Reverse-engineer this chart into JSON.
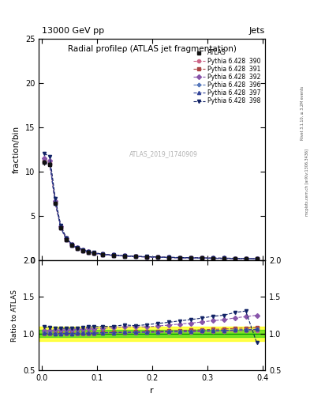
{
  "title": "Radial profileρ (ATLAS jet fragmentation)",
  "top_left_label": "13000 GeV pp",
  "top_right_label": "Jets",
  "ylabel_main": "fraction/bin",
  "ylabel_ratio": "Ratio to ATLAS",
  "xlabel": "r",
  "watermark": "ATLAS_2019_I1740909",
  "rivet_label": "Rivet 3.1.10, ≥ 3.2M events",
  "mcplots_label": "mcplots.cern.ch [arXiv:1306.3436]",
  "ylim_main": [
    0,
    25
  ],
  "ylim_ratio": [
    0.5,
    2.0
  ],
  "r_bins": [
    0.005,
    0.015,
    0.025,
    0.035,
    0.045,
    0.055,
    0.065,
    0.075,
    0.085,
    0.095,
    0.11,
    0.13,
    0.15,
    0.17,
    0.19,
    0.21,
    0.23,
    0.25,
    0.27,
    0.29,
    0.31,
    0.33,
    0.35,
    0.37,
    0.39
  ],
  "atlas_data": [
    11.0,
    10.8,
    6.4,
    3.6,
    2.3,
    1.65,
    1.3,
    1.05,
    0.87,
    0.75,
    0.6,
    0.5,
    0.42,
    0.37,
    0.33,
    0.29,
    0.26,
    0.23,
    0.21,
    0.19,
    0.17,
    0.16,
    0.14,
    0.13,
    0.12
  ],
  "atlas_err_lo": [
    0.3,
    0.3,
    0.15,
    0.08,
    0.05,
    0.04,
    0.03,
    0.025,
    0.02,
    0.018,
    0.015,
    0.012,
    0.01,
    0.009,
    0.008,
    0.007,
    0.006,
    0.005,
    0.005,
    0.004,
    0.004,
    0.004,
    0.003,
    0.003,
    0.003
  ],
  "atlas_err_hi": [
    0.3,
    0.3,
    0.15,
    0.08,
    0.05,
    0.04,
    0.03,
    0.025,
    0.02,
    0.018,
    0.015,
    0.012,
    0.01,
    0.009,
    0.008,
    0.007,
    0.006,
    0.005,
    0.005,
    0.004,
    0.004,
    0.004,
    0.003,
    0.003,
    0.003
  ],
  "pythia_390": [
    11.0,
    10.8,
    6.4,
    3.6,
    2.3,
    1.65,
    1.3,
    1.05,
    0.87,
    0.75,
    0.605,
    0.505,
    0.425,
    0.375,
    0.335,
    0.295,
    0.265,
    0.235,
    0.215,
    0.195,
    0.175,
    0.165,
    0.145,
    0.135,
    0.125
  ],
  "pythia_391": [
    11.1,
    10.9,
    6.45,
    3.62,
    2.32,
    1.66,
    1.31,
    1.06,
    0.88,
    0.76,
    0.61,
    0.51,
    0.43,
    0.38,
    0.34,
    0.3,
    0.27,
    0.24,
    0.22,
    0.2,
    0.18,
    0.17,
    0.15,
    0.14,
    0.13
  ],
  "pythia_392": [
    11.5,
    11.2,
    6.7,
    3.78,
    2.42,
    1.74,
    1.38,
    1.12,
    0.93,
    0.8,
    0.645,
    0.54,
    0.46,
    0.405,
    0.36,
    0.32,
    0.29,
    0.26,
    0.24,
    0.22,
    0.2,
    0.19,
    0.17,
    0.16,
    0.15
  ],
  "pythia_396": [
    11.05,
    10.85,
    6.42,
    3.61,
    2.31,
    1.655,
    1.305,
    1.055,
    0.875,
    0.755,
    0.608,
    0.507,
    0.427,
    0.377,
    0.337,
    0.297,
    0.267,
    0.237,
    0.217,
    0.197,
    0.177,
    0.167,
    0.147,
    0.137,
    0.127
  ],
  "pythia_397": [
    11.05,
    10.85,
    6.42,
    3.61,
    2.31,
    1.655,
    1.305,
    1.055,
    0.875,
    0.755,
    0.608,
    0.507,
    0.427,
    0.377,
    0.337,
    0.297,
    0.267,
    0.237,
    0.217,
    0.197,
    0.177,
    0.167,
    0.147,
    0.137,
    0.127
  ],
  "pythia_398": [
    12.0,
    11.7,
    6.9,
    3.85,
    2.47,
    1.77,
    1.4,
    1.14,
    0.95,
    0.82,
    0.66,
    0.55,
    0.47,
    0.41,
    0.37,
    0.33,
    0.3,
    0.27,
    0.25,
    0.23,
    0.21,
    0.2,
    0.18,
    0.17,
    0.105
  ],
  "color_390": "#cc6688",
  "color_391": "#aa4444",
  "color_392": "#8855aa",
  "color_396": "#5577bb",
  "color_397": "#334499",
  "color_398": "#112266",
  "marker_390": "o",
  "marker_391": "s",
  "marker_392": "D",
  "marker_396": "P",
  "marker_397": "^",
  "marker_398": "v",
  "atlas_color": "#111111",
  "green_band": 0.05,
  "yellow_band": 0.1,
  "legend_labels": [
    "ATLAS",
    "Pythia 6.428  390",
    "Pythia 6.428  391",
    "Pythia 6.428  392",
    "Pythia 6.428  396",
    "Pythia 6.428  397",
    "Pythia 6.428  398"
  ]
}
